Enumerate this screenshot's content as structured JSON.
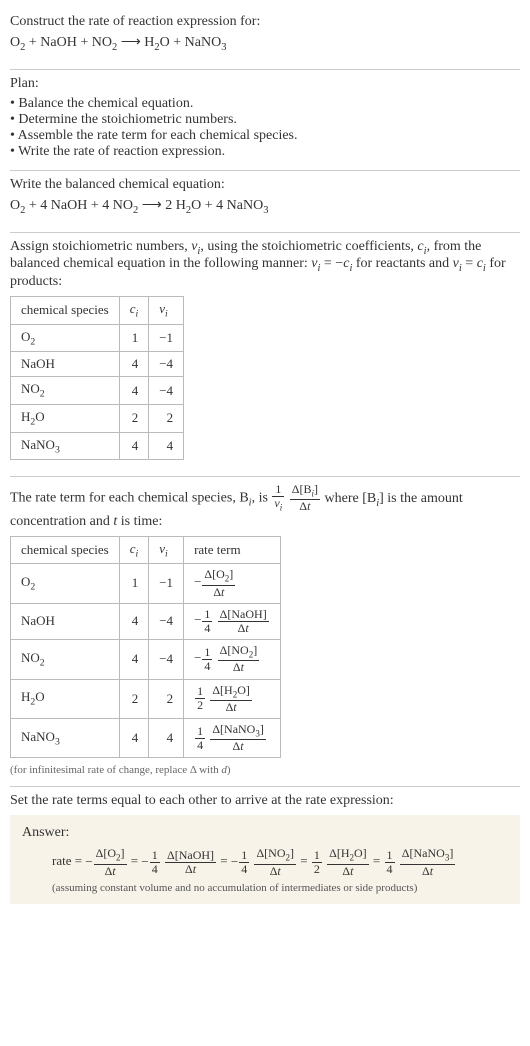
{
  "header": {
    "construct": "Construct the rate of reaction expression for:",
    "equation_html": "O<sub>2</sub> + NaOH + NO<sub>2</sub>  ⟶  H<sub>2</sub>O + NaNO<sub>3</sub>"
  },
  "plan": {
    "title": "Plan:",
    "items": [
      "• Balance the chemical equation.",
      "• Determine the stoichiometric numbers.",
      "• Assemble the rate term for each chemical species.",
      "• Write the rate of reaction expression."
    ]
  },
  "balanced": {
    "title": "Write the balanced chemical equation:",
    "equation_html": "O<sub>2</sub> + 4 NaOH + 4 NO<sub>2</sub>  ⟶  2 H<sub>2</sub>O + 4 NaNO<sub>3</sub>"
  },
  "stoich_intro_html": "Assign stoichiometric numbers, <span class='ital'>ν<sub>i</sub></span>, using the stoichiometric coefficients, <span class='ital'>c<sub>i</sub></span>, from the balanced chemical equation in the following manner: <span class='ital'>ν<sub>i</sub></span> = −<span class='ital'>c<sub>i</sub></span> for reactants and <span class='ital'>ν<sub>i</sub></span> = <span class='ital'>c<sub>i</sub></span> for products:",
  "table1": {
    "headers": [
      "chemical species",
      "c_i",
      "ν_i"
    ],
    "headers_html": [
      "chemical species",
      "<span class='ital'>c<sub>i</sub></span>",
      "<span class='ital'>ν<sub>i</sub></span>"
    ],
    "rows": [
      {
        "species_html": "O<sub>2</sub>",
        "c": "1",
        "v": "−1"
      },
      {
        "species_html": "NaOH",
        "c": "4",
        "v": "−4"
      },
      {
        "species_html": "NO<sub>2</sub>",
        "c": "4",
        "v": "−4"
      },
      {
        "species_html": "H<sub>2</sub>O",
        "c": "2",
        "v": "2"
      },
      {
        "species_html": "NaNO<sub>3</sub>",
        "c": "4",
        "v": "4"
      }
    ]
  },
  "rateterm_intro": {
    "prefix": "The rate term for each chemical species, B",
    "sub": "i",
    "mid": ", is ",
    "frac1_num": "1",
    "frac1_den_html": "<span class='ital'>ν<sub>i</sub></span>",
    "frac2_num_html": "Δ[B<sub><i>i</i></sub>]",
    "frac2_den_html": "Δ<span class='ital'>t</span>",
    "suffix_html": " where [B<sub><i>i</i></sub>] is the amount concentration and <span class='ital'>t</span> is time:"
  },
  "table2": {
    "headers_html": [
      "chemical species",
      "<span class='ital'>c<sub>i</sub></span>",
      "<span class='ital'>ν<sub>i</sub></span>",
      "rate term"
    ],
    "rows": [
      {
        "species_html": "O<sub>2</sub>",
        "c": "1",
        "v": "−1",
        "rate_prefix": "−",
        "coef_num": "",
        "coef_den": "",
        "d_num_html": "Δ[O<sub>2</sub>]",
        "d_den_html": "Δ<span class='ital'>t</span>"
      },
      {
        "species_html": "NaOH",
        "c": "4",
        "v": "−4",
        "rate_prefix": "−",
        "coef_num": "1",
        "coef_den": "4",
        "d_num_html": "Δ[NaOH]",
        "d_den_html": "Δ<span class='ital'>t</span>"
      },
      {
        "species_html": "NO<sub>2</sub>",
        "c": "4",
        "v": "−4",
        "rate_prefix": "−",
        "coef_num": "1",
        "coef_den": "4",
        "d_num_html": "Δ[NO<sub>2</sub>]",
        "d_den_html": "Δ<span class='ital'>t</span>"
      },
      {
        "species_html": "H<sub>2</sub>O",
        "c": "2",
        "v": "2",
        "rate_prefix": "",
        "coef_num": "1",
        "coef_den": "2",
        "d_num_html": "Δ[H<sub>2</sub>O]",
        "d_den_html": "Δ<span class='ital'>t</span>"
      },
      {
        "species_html": "NaNO<sub>3</sub>",
        "c": "4",
        "v": "4",
        "rate_prefix": "",
        "coef_num": "1",
        "coef_den": "4",
        "d_num_html": "Δ[NaNO<sub>3</sub>]",
        "d_den_html": "Δ<span class='ital'>t</span>"
      }
    ],
    "note_html": "(for infinitesimal rate of change, replace Δ with <span class='ital'>d</span>)"
  },
  "final_intro": "Set the rate terms equal to each other to arrive at the rate expression:",
  "answer": {
    "title": "Answer:",
    "lead": "rate = ",
    "terms": [
      {
        "prefix": "−",
        "coef_num": "",
        "coef_den": "",
        "d_num_html": "Δ[O<sub>2</sub>]",
        "d_den_html": "Δ<span class='ital'>t</span>"
      },
      {
        "prefix": "−",
        "coef_num": "1",
        "coef_den": "4",
        "d_num_html": "Δ[NaOH]",
        "d_den_html": "Δ<span class='ital'>t</span>"
      },
      {
        "prefix": "−",
        "coef_num": "1",
        "coef_den": "4",
        "d_num_html": "Δ[NO<sub>2</sub>]",
        "d_den_html": "Δ<span class='ital'>t</span>"
      },
      {
        "prefix": "",
        "coef_num": "1",
        "coef_den": "2",
        "d_num_html": "Δ[H<sub>2</sub>O]",
        "d_den_html": "Δ<span class='ital'>t</span>"
      },
      {
        "prefix": "",
        "coef_num": "1",
        "coef_den": "4",
        "d_num_html": "Δ[NaNO<sub>3</sub>]",
        "d_den_html": "Δ<span class='ital'>t</span>"
      }
    ],
    "note": "(assuming constant volume and no accumulation of intermediates or side products)"
  },
  "colors": {
    "text": "#333333",
    "rule": "#cccccc",
    "table_border": "#bbbbbb",
    "answer_bg": "#f7f3e8",
    "note": "#666666"
  }
}
